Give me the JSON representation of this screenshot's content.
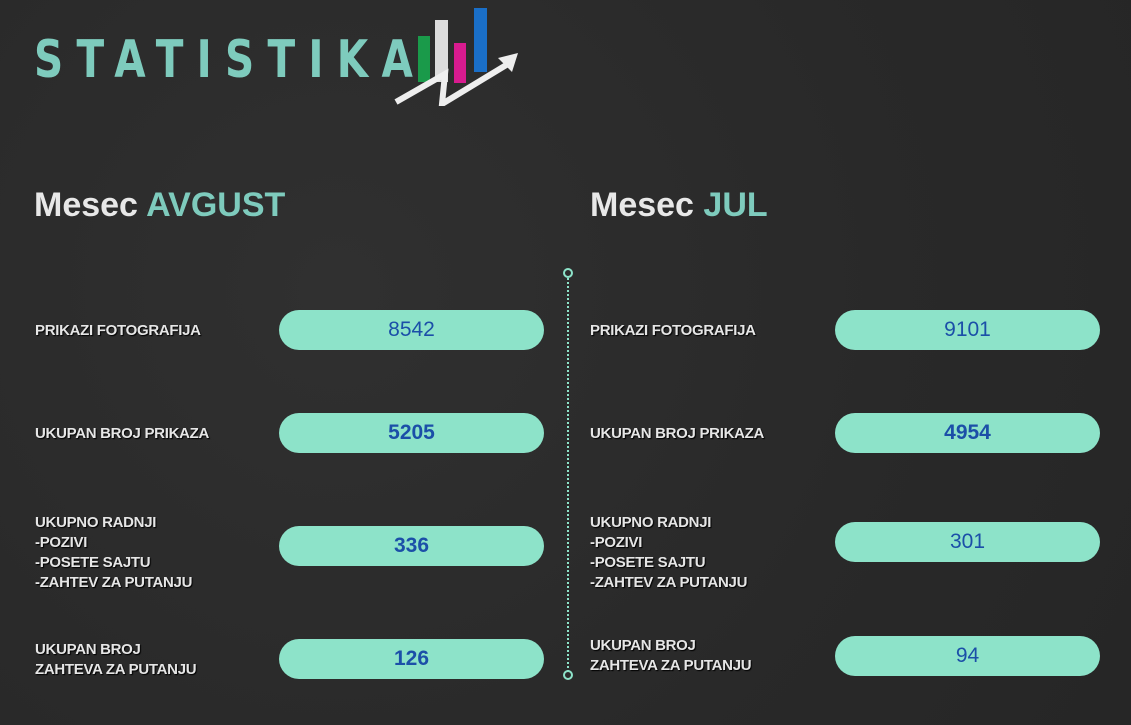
{
  "title": "STATISTIKA",
  "logo_colors": [
    "#1a9a4a",
    "#dcdcdc",
    "#d81b8f",
    "#1a6fc8"
  ],
  "accent_color": "#7ecbbd",
  "pill_color": "#8de3c9",
  "columns": [
    {
      "prefix": "Mesec",
      "month": "AVGUST",
      "rows": [
        {
          "label": "PRIKAZI FOTOGRAFIJA",
          "value": "8542"
        },
        {
          "label": "UKUPAN BROJ PRIKAZA",
          "value": "5205"
        },
        {
          "label": [
            "UKUPNO RADNJI",
            "-POZIVI",
            "-POSETE SAJTU",
            "-ZAHTEV ZA PUTANJU"
          ],
          "value": "336"
        },
        {
          "label": [
            "UKUPAN BROJ",
            "ZAHTEVA ZA PUTANJU"
          ],
          "value": "126"
        }
      ]
    },
    {
      "prefix": "Mesec",
      "month": "JUL",
      "rows": [
        {
          "label": "PRIKAZI FOTOGRAFIJA",
          "value": "9101"
        },
        {
          "label": "UKUPAN BROJ PRIKAZA",
          "value": "4954"
        },
        {
          "label": [
            "UKUPNO RADNJI",
            "-POZIVI",
            "-POSETE SAJTU",
            "-ZAHTEV ZA PUTANJU"
          ],
          "value": "301"
        },
        {
          "label": [
            "UKUPAN BROJ",
            "ZAHTEVA ZA PUTANJU"
          ],
          "value": "94"
        }
      ]
    }
  ]
}
